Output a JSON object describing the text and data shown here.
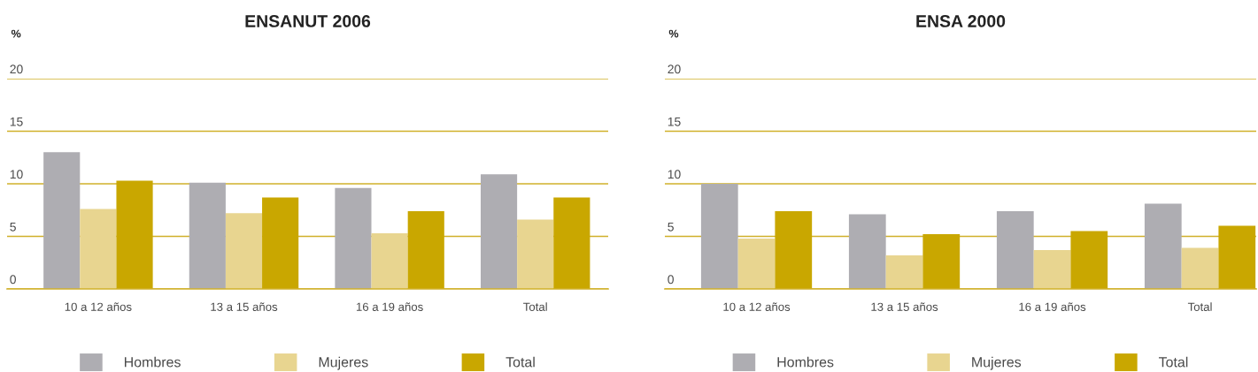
{
  "chart_data": [
    {
      "type": "bar",
      "title": "ENSANUT 2006",
      "ylabel": "%",
      "categories": [
        "10 a 12 años",
        "13 a 15 años",
        "16 a 19 años",
        "Total"
      ],
      "series": [
        {
          "name": "Hombres",
          "color": "#aeadb2",
          "values": [
            13.0,
            10.1,
            9.6,
            10.9
          ]
        },
        {
          "name": "Mujeres",
          "color": "#e8d590",
          "values": [
            7.6,
            7.2,
            5.3,
            6.6
          ]
        },
        {
          "name": "Total",
          "color": "#c9a700",
          "values": [
            10.3,
            8.7,
            7.4,
            8.7
          ]
        }
      ],
      "ylim": [
        0,
        20
      ],
      "yticks": [
        0,
        5,
        10,
        15,
        20
      ],
      "grid": "y",
      "legend": "bottom"
    },
    {
      "type": "bar",
      "title": "ENSA 2000",
      "ylabel": "%",
      "categories": [
        "10 a 12 años",
        "13 a 15 años",
        "16 a 19 años",
        "Total"
      ],
      "series": [
        {
          "name": "Hombres",
          "color": "#aeadb2",
          "values": [
            10.0,
            7.1,
            7.4,
            8.1
          ]
        },
        {
          "name": "Mujeres",
          "color": "#e8d590",
          "values": [
            4.8,
            3.2,
            3.7,
            3.9
          ]
        },
        {
          "name": "Total",
          "color": "#c9a700",
          "values": [
            7.4,
            5.2,
            5.5,
            6.0
          ]
        }
      ],
      "ylim": [
        0,
        20
      ],
      "yticks": [
        0,
        5,
        10,
        15,
        20
      ],
      "grid": "y",
      "legend": "bottom"
    }
  ]
}
